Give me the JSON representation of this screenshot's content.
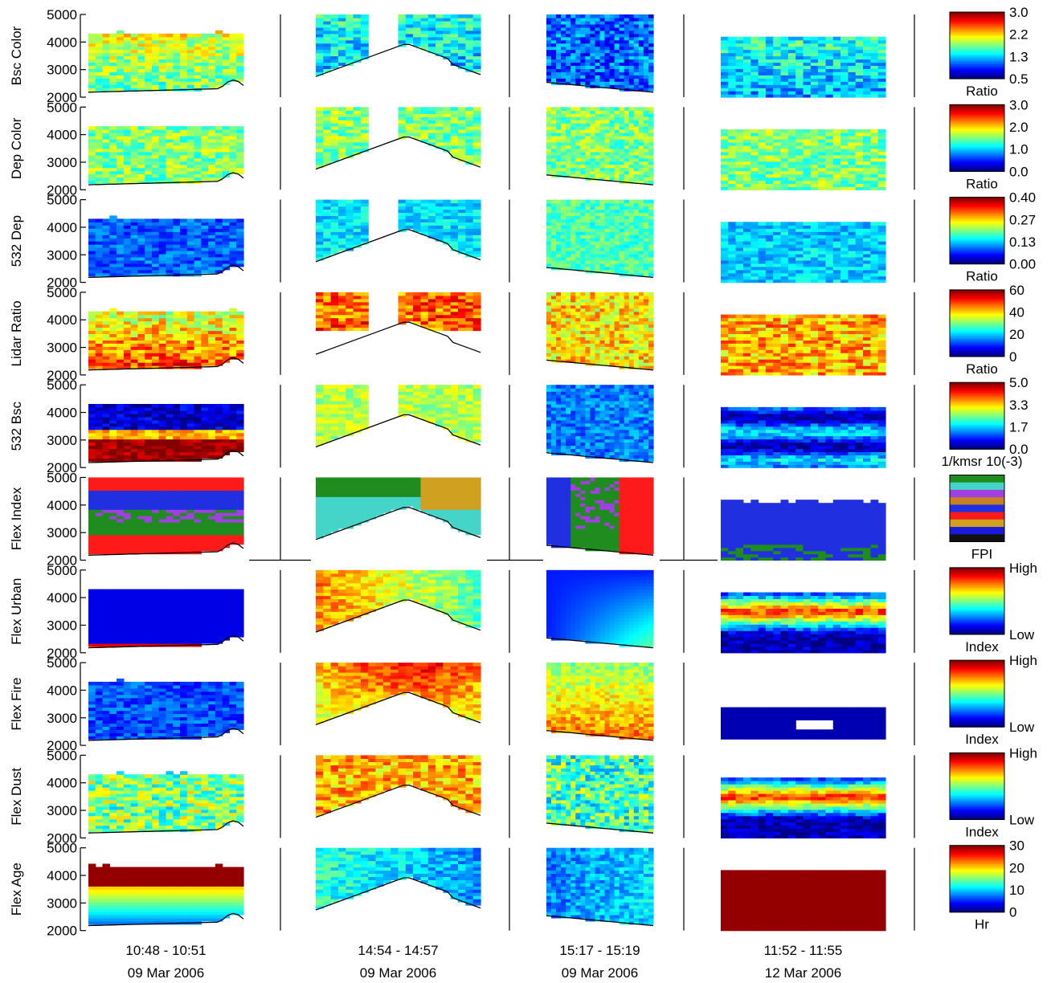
{
  "figure": {
    "y_ticks": [
      "2000",
      "3000",
      "4000",
      "5000"
    ],
    "x_labels": [
      {
        "time": "10:48 - 10:51",
        "date": "09 Mar 2006"
      },
      {
        "time": "14:54 - 14:57",
        "date": "09 Mar 2006"
      },
      {
        "time": "15:17 - 15:19",
        "date": "09 Mar 2006"
      },
      {
        "time": "11:52 - 11:55",
        "date": "12 Mar 2006"
      }
    ]
  },
  "chart_data": [
    {
      "type": "heatmap",
      "ylabel": "Bsc Color",
      "ylim": [
        2000,
        5000
      ],
      "colorbar": {
        "ticks": [
          "3.0",
          "2.2",
          "1.3",
          "0.5"
        ],
        "unit": "Ratio",
        "range": [
          0.5,
          3.0
        ]
      }
    },
    {
      "type": "heatmap",
      "ylabel": "Dep Color",
      "ylim": [
        2000,
        5000
      ],
      "colorbar": {
        "ticks": [
          "3.0",
          "2.0",
          "1.0",
          "0.0"
        ],
        "unit": "Ratio",
        "range": [
          0.0,
          3.0
        ]
      }
    },
    {
      "type": "heatmap",
      "ylabel": "532 Dep",
      "ylim": [
        2000,
        5000
      ],
      "colorbar": {
        "ticks": [
          "0.40",
          "0.27",
          "0.13",
          "0.00"
        ],
        "unit": "Ratio",
        "range": [
          0.0,
          0.4
        ]
      }
    },
    {
      "type": "heatmap",
      "ylabel": "Lidar Ratio",
      "ylim": [
        2000,
        5000
      ],
      "colorbar": {
        "ticks": [
          "60",
          "40",
          "20",
          "0"
        ],
        "unit": "Ratio",
        "range": [
          0,
          60
        ]
      }
    },
    {
      "type": "heatmap",
      "ylabel": "532 Bsc",
      "ylim": [
        2000,
        5000
      ],
      "colorbar": {
        "ticks": [
          "5.0",
          "3.3",
          "1.7",
          "0.0"
        ],
        "unit": "1/kmsr 10(-3)",
        "range": [
          0.0,
          5.0
        ]
      }
    },
    {
      "type": "heatmap",
      "ylabel": "Flex Index",
      "ylim": [
        2000,
        5000
      ],
      "colorbar": {
        "ticks": [],
        "unit": "FPI",
        "categorical": [
          "#1e8c1e",
          "#44d4c8",
          "#a040e0",
          "#c88020",
          "#2030e0",
          "#ff1a1a",
          "#d0a020",
          "#1a1adc",
          "#101010"
        ]
      }
    },
    {
      "type": "heatmap",
      "ylabel": "Flex Urban",
      "ylim": [
        2000,
        5000
      ],
      "colorbar": {
        "ticks": [
          "High",
          "Low"
        ],
        "unit": "Index"
      }
    },
    {
      "type": "heatmap",
      "ylabel": "Flex Fire",
      "ylim": [
        2000,
        5000
      ],
      "colorbar": {
        "ticks": [
          "High",
          "Low"
        ],
        "unit": "Index"
      }
    },
    {
      "type": "heatmap",
      "ylabel": "Flex Dust",
      "ylim": [
        2000,
        5000
      ],
      "colorbar": {
        "ticks": [
          "High",
          "Low"
        ],
        "unit": "Index"
      }
    },
    {
      "type": "heatmap",
      "ylabel": "Flex Age",
      "ylim": [
        2000,
        5000
      ],
      "colorbar": {
        "ticks": [
          "30",
          "20",
          "10",
          "0"
        ],
        "unit": "Hr",
        "range": [
          0,
          30
        ]
      }
    }
  ]
}
